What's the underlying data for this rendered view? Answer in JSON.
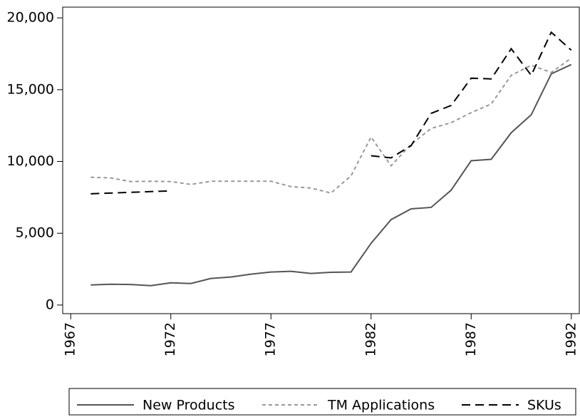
{
  "chart_data": {
    "type": "line",
    "x": [
      1968,
      1969,
      1970,
      1971,
      1972,
      1973,
      1974,
      1975,
      1976,
      1977,
      1978,
      1979,
      1980,
      1981,
      1982,
      1983,
      1984,
      1985,
      1986,
      1987,
      1988,
      1989,
      1990,
      1991,
      1992
    ],
    "series": [
      {
        "name": "New Products",
        "color": "#555555",
        "dash": "solid",
        "values": [
          1400,
          1450,
          1430,
          1350,
          1550,
          1500,
          1850,
          1950,
          2150,
          2300,
          2350,
          2200,
          2280,
          2300,
          4300,
          5950,
          6700,
          6800,
          8000,
          10050,
          10150,
          12000,
          13250,
          16100,
          16750
        ]
      },
      {
        "name": "TM Applications",
        "color": "#999999",
        "dash": "dotted",
        "values": [
          8900,
          8850,
          8600,
          8620,
          8600,
          8400,
          8620,
          8620,
          8620,
          8620,
          8250,
          8150,
          7800,
          9000,
          11700,
          9700,
          11200,
          12300,
          12700,
          13400,
          14000,
          16000,
          16700,
          16200,
          17200
        ]
      },
      {
        "name": "SKUs",
        "color": "#000000",
        "dash": "dashed",
        "values": [
          7750,
          7800,
          7850,
          7900,
          7950,
          null,
          null,
          null,
          null,
          null,
          null,
          null,
          null,
          null,
          10400,
          10250,
          11100,
          13350,
          13900,
          15800,
          15750,
          17850,
          16000,
          19000,
          17750
        ]
      }
    ],
    "xlim": [
      1966.6,
      1992.4
    ],
    "xticks": [
      1967,
      1972,
      1977,
      1982,
      1987,
      1992
    ],
    "ylim": [
      -600,
      20750
    ],
    "yticks": [
      0,
      {
        "value": 5000,
        "label": "5,000"
      },
      {
        "value": 10000,
        "label": "10,000"
      },
      {
        "value": 15000,
        "label": "15,000"
      },
      {
        "value": 20000,
        "label": "20,000"
      }
    ],
    "grid": false,
    "legend": "bottom"
  }
}
